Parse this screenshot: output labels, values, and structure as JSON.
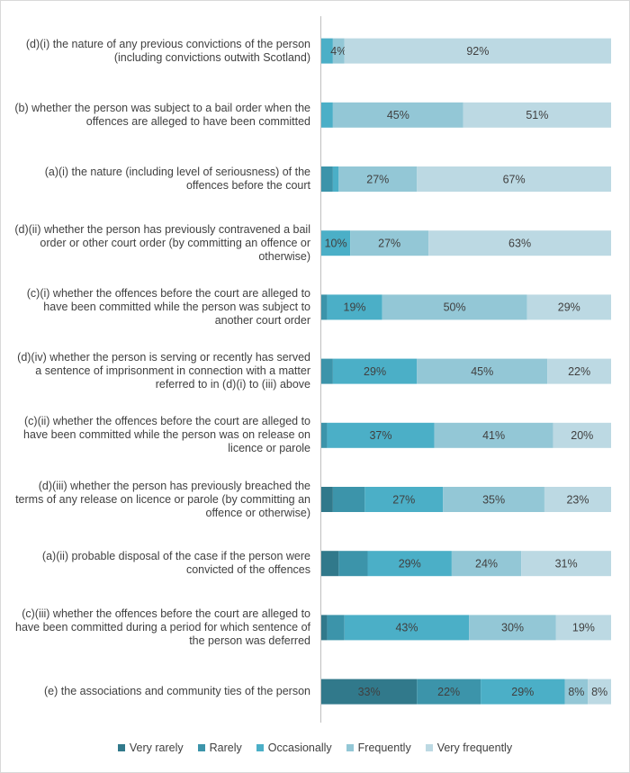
{
  "chart_data": {
    "type": "stacked-barh",
    "categories": [
      "(d)(i) the nature of any previous convictions of the person (including convictions outwith Scotland)",
      "(b) whether the person was subject to a bail order when the offences are alleged to have been committed",
      "(a)(i) the nature (including level of seriousness) of the offences before the court",
      "(d)(ii) whether the person has previously contravened a bail order or other court order (by committing an offence or otherwise)",
      "(c)(i) whether the offences before the court are alleged to have been committed while the person was subject to another court order",
      "(d)(iv) whether the person is serving or recently has served a sentence of imprisonment in connection with a matter referred to in (d)(i) to (iii) above",
      "(c)(ii) whether the offences before the court are alleged to have been committed while the person was on release on licence or parole",
      "(d)(iii) whether the person has previously breached the terms of any release on licence or parole (by committing an offence or otherwise)",
      "(a)(ii) probable disposal of the case if the person were convicted of the offences",
      "(c)(iii) whether the offences before the court are alleged to have been committed during a period for which sentence of the person was deferred",
      "(e) the associations and community ties of the person"
    ],
    "xlim": [
      0,
      100
    ],
    "series": [
      {
        "name": "Very rarely",
        "color": "#31798b",
        "values": [
          0,
          0,
          0,
          0,
          0,
          0,
          0,
          4,
          6,
          2,
          33
        ],
        "value_labels": [
          null,
          null,
          null,
          null,
          null,
          null,
          null,
          null,
          null,
          null,
          "33%"
        ]
      },
      {
        "name": "Rarely",
        "color": "#3c94aa",
        "values": [
          0,
          0,
          4,
          0,
          2,
          4,
          2,
          11,
          10,
          6,
          22
        ],
        "value_labels": [
          null,
          null,
          null,
          null,
          null,
          null,
          null,
          null,
          null,
          null,
          "22%"
        ]
      },
      {
        "name": "Occasionally",
        "color": "#4bafc7",
        "values": [
          4,
          4,
          2,
          10,
          19,
          29,
          37,
          27,
          29,
          43,
          29
        ],
        "value_labels": [
          null,
          null,
          null,
          "10%",
          "19%",
          "29%",
          "37%",
          "27%",
          "29%",
          "43%",
          "29%"
        ]
      },
      {
        "name": "Frequently",
        "color": "#93c7d6",
        "values": [
          4,
          45,
          27,
          27,
          50,
          45,
          41,
          35,
          24,
          30,
          8
        ],
        "value_labels": [
          "4%",
          "45%",
          "27%",
          "27%",
          "50%",
          "45%",
          "41%",
          "35%",
          "24%",
          "30%",
          "8%"
        ]
      },
      {
        "name": "Very frequently",
        "color": "#bcd9e3",
        "values": [
          92,
          51,
          67,
          63,
          29,
          22,
          20,
          23,
          31,
          19,
          8
        ],
        "value_labels": [
          "92%",
          "51%",
          "67%",
          "63%",
          "29%",
          "22%",
          "20%",
          "23%",
          "31%",
          "19%",
          "8%"
        ]
      }
    ]
  }
}
